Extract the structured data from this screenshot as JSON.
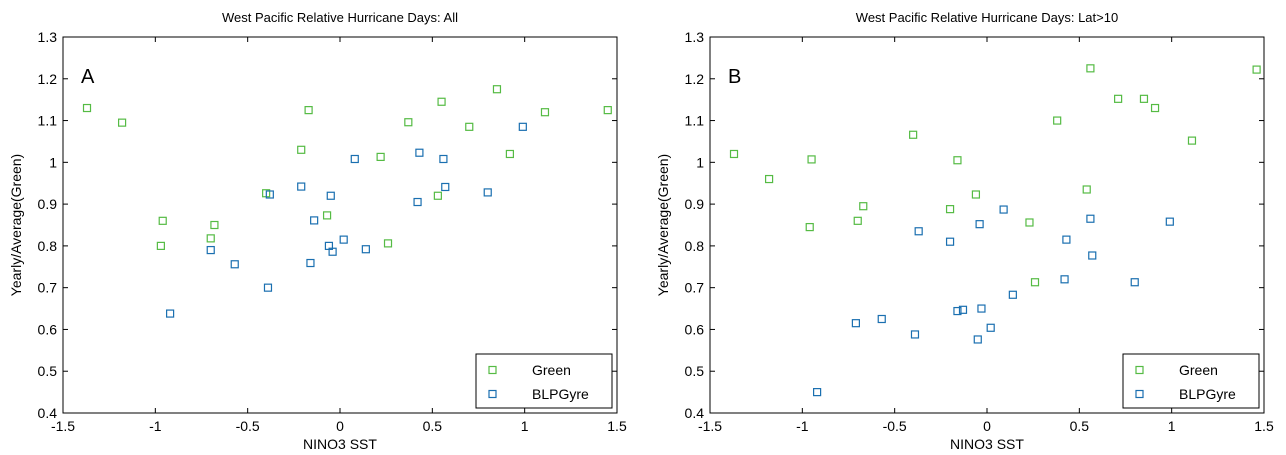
{
  "colors": {
    "green": "#55bb44",
    "blpgyre": "#1a6fb0",
    "axis": "#000000",
    "background": "#ffffff"
  },
  "chart_data": [
    {
      "type": "scatter",
      "title": "West Pacific Relative Hurricane Days: All",
      "panel_label": "A",
      "xlabel": "NINO3 SST",
      "ylabel": "Yearly/Average(Green)",
      "xlim": [
        -1.5,
        1.5
      ],
      "ylim": [
        0.4,
        1.3
      ],
      "xticks": [
        "-1.5",
        "-1",
        "-0.5",
        "0",
        "0.5",
        "1",
        "1.5"
      ],
      "yticks": [
        "0.4",
        "0.5",
        "0.6",
        "0.7",
        "0.8",
        "0.9",
        "1",
        "1.1",
        "1.2",
        "1.3"
      ],
      "grid": false,
      "legend_position": "bottom-right",
      "marker": "open-square",
      "series": [
        {
          "name": "Green",
          "color": "#55bb44",
          "points": [
            [
              -1.37,
              1.13
            ],
            [
              -1.18,
              1.095
            ],
            [
              -0.96,
              0.86
            ],
            [
              -0.97,
              0.8
            ],
            [
              -0.68,
              0.85
            ],
            [
              -0.7,
              0.818
            ],
            [
              -0.4,
              0.926
            ],
            [
              -0.21,
              1.03
            ],
            [
              -0.17,
              1.125
            ],
            [
              -0.07,
              0.873
            ],
            [
              0.22,
              1.013
            ],
            [
              0.26,
              0.806
            ],
            [
              0.37,
              1.096
            ],
            [
              0.53,
              0.92
            ],
            [
              0.55,
              1.145
            ],
            [
              0.7,
              1.085
            ],
            [
              0.85,
              1.175
            ],
            [
              0.92,
              1.02
            ],
            [
              1.11,
              1.12
            ],
            [
              1.45,
              1.125
            ]
          ]
        },
        {
          "name": "BLPGyre",
          "color": "#1a6fb0",
          "points": [
            [
              -0.92,
              0.638
            ],
            [
              -0.7,
              0.79
            ],
            [
              -0.57,
              0.756
            ],
            [
              -0.39,
              0.7
            ],
            [
              -0.38,
              0.923
            ],
            [
              -0.21,
              0.942
            ],
            [
              -0.16,
              0.759
            ],
            [
              -0.14,
              0.861
            ],
            [
              -0.06,
              0.8
            ],
            [
              -0.05,
              0.92
            ],
            [
              -0.04,
              0.786
            ],
            [
              0.02,
              0.815
            ],
            [
              0.08,
              1.008
            ],
            [
              0.14,
              0.792
            ],
            [
              0.42,
              0.905
            ],
            [
              0.43,
              1.023
            ],
            [
              0.56,
              1.008
            ],
            [
              0.57,
              0.941
            ],
            [
              0.8,
              0.928
            ],
            [
              0.99,
              1.085
            ]
          ]
        }
      ]
    },
    {
      "type": "scatter",
      "title": "West Pacific Relative Hurricane Days: Lat>10",
      "panel_label": "B",
      "xlabel": "NINO3 SST",
      "ylabel": "Yearly/Average(Green)",
      "xlim": [
        -1.5,
        1.5
      ],
      "ylim": [
        0.4,
        1.3
      ],
      "xticks": [
        "-1.5",
        "-1",
        "-0.5",
        "0",
        "0.5",
        "1",
        "1.5"
      ],
      "yticks": [
        "0.4",
        "0.5",
        "0.6",
        "0.7",
        "0.8",
        "0.9",
        "1",
        "1.1",
        "1.2",
        "1.3"
      ],
      "grid": false,
      "legend_position": "bottom-right",
      "marker": "open-square",
      "series": [
        {
          "name": "Green",
          "color": "#55bb44",
          "points": [
            [
              -1.37,
              1.02
            ],
            [
              -1.18,
              0.96
            ],
            [
              -0.95,
              1.007
            ],
            [
              -0.96,
              0.845
            ],
            [
              -0.67,
              0.895
            ],
            [
              -0.7,
              0.86
            ],
            [
              -0.4,
              1.066
            ],
            [
              -0.2,
              0.888
            ],
            [
              -0.16,
              1.005
            ],
            [
              -0.06,
              0.923
            ],
            [
              0.23,
              0.856
            ],
            [
              0.26,
              0.713
            ],
            [
              0.38,
              1.1
            ],
            [
              0.54,
              0.935
            ],
            [
              0.56,
              1.225
            ],
            [
              0.71,
              1.152
            ],
            [
              0.85,
              1.152
            ],
            [
              0.91,
              1.13
            ],
            [
              1.11,
              1.052
            ],
            [
              1.46,
              1.222
            ]
          ]
        },
        {
          "name": "BLPGyre",
          "color": "#1a6fb0",
          "points": [
            [
              -0.92,
              0.45
            ],
            [
              -0.71,
              0.615
            ],
            [
              -0.57,
              0.625
            ],
            [
              -0.39,
              0.588
            ],
            [
              -0.37,
              0.835
            ],
            [
              -0.2,
              0.81
            ],
            [
              -0.16,
              0.644
            ],
            [
              -0.13,
              0.647
            ],
            [
              -0.05,
              0.576
            ],
            [
              -0.04,
              0.852
            ],
            [
              -0.03,
              0.65
            ],
            [
              0.02,
              0.604
            ],
            [
              0.09,
              0.887
            ],
            [
              0.14,
              0.683
            ],
            [
              0.42,
              0.72
            ],
            [
              0.43,
              0.815
            ],
            [
              0.56,
              0.865
            ],
            [
              0.57,
              0.777
            ],
            [
              0.8,
              0.713
            ],
            [
              0.99,
              0.858
            ]
          ]
        }
      ]
    }
  ]
}
